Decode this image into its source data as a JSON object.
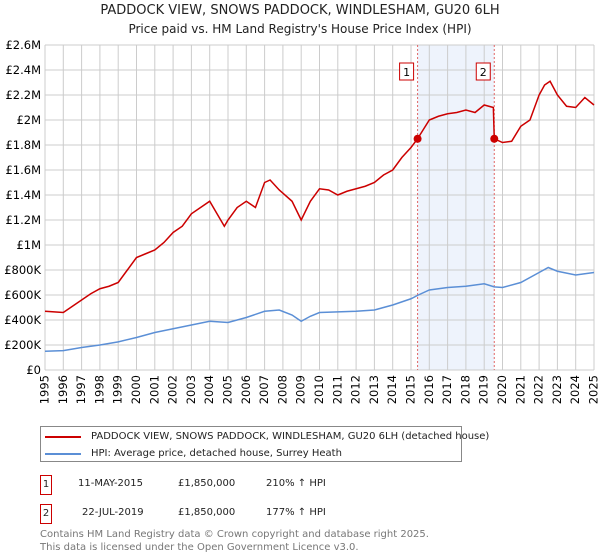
{
  "chart_data": {
    "type": "line",
    "title": "PADDOCK VIEW, SNOWS PADDOCK, WINDLESHAM, GU20 6LH",
    "subtitle": "Price paid vs. HM Land Registry's House Price Index (HPI)",
    "xlim": [
      1995,
      2025
    ],
    "ylim": [
      0,
      2600000
    ],
    "grid": true,
    "yticks": [
      {
        "v": 0,
        "l": "£0"
      },
      {
        "v": 200000,
        "l": "£200K"
      },
      {
        "v": 400000,
        "l": "£400K"
      },
      {
        "v": 600000,
        "l": "£600K"
      },
      {
        "v": 800000,
        "l": "£800K"
      },
      {
        "v": 1000000,
        "l": "£1M"
      },
      {
        "v": 1200000,
        "l": "£1.2M"
      },
      {
        "v": 1400000,
        "l": "£1.4M"
      },
      {
        "v": 1600000,
        "l": "£1.6M"
      },
      {
        "v": 1800000,
        "l": "£1.8M"
      },
      {
        "v": 2000000,
        "l": "£2M"
      },
      {
        "v": 2200000,
        "l": "£2.2M"
      },
      {
        "v": 2400000,
        "l": "£2.4M"
      },
      {
        "v": 2600000,
        "l": "£2.6M"
      }
    ],
    "xticks": [
      1995,
      1996,
      1997,
      1998,
      1999,
      2000,
      2001,
      2002,
      2003,
      2004,
      2005,
      2006,
      2007,
      2008,
      2009,
      2010,
      2011,
      2012,
      2013,
      2014,
      2015,
      2016,
      2017,
      2018,
      2019,
      2020,
      2021,
      2022,
      2023,
      2024,
      2025
    ],
    "shade": [
      2015.36,
      2019.55
    ],
    "series": [
      {
        "name": "PADDOCK VIEW, SNOWS PADDOCK, WINDLESHAM, GU20 6LH (detached house)",
        "color": "#cc0000",
        "x": [
          1995,
          1995.5,
          1996,
          1996.5,
          1997,
          1997.5,
          1998,
          1998.5,
          1999,
          1999.5,
          2000,
          2000.5,
          2001,
          2001.5,
          2002,
          2002.5,
          2003,
          2003.5,
          2004,
          2004.4,
          2004.8,
          2005,
          2005.5,
          2006,
          2006.5,
          2007,
          2007.3,
          2007.8,
          2008.5,
          2009,
          2009.5,
          2010,
          2010.5,
          2011,
          2011.5,
          2012,
          2012.5,
          2013,
          2013.5,
          2014,
          2014.5,
          2015,
          2015.36,
          2015.7,
          2016,
          2016.5,
          2017,
          2017.5,
          2018,
          2018.5,
          2019,
          2019.5,
          2019.55,
          2020,
          2020.5,
          2021,
          2021.5,
          2022,
          2022.3,
          2022.6,
          2023,
          2023.5,
          2024,
          2024.5,
          2025
        ],
        "y": [
          470000,
          465000,
          460000,
          510000,
          560000,
          610000,
          650000,
          670000,
          700000,
          800000,
          900000,
          930000,
          960000,
          1020000,
          1100000,
          1150000,
          1250000,
          1300000,
          1350000,
          1250000,
          1150000,
          1200000,
          1300000,
          1350000,
          1300000,
          1500000,
          1520000,
          1440000,
          1350000,
          1200000,
          1350000,
          1450000,
          1440000,
          1400000,
          1430000,
          1450000,
          1470000,
          1500000,
          1560000,
          1600000,
          1700000,
          1780000,
          1850000,
          1930000,
          2000000,
          2030000,
          2050000,
          2060000,
          2080000,
          2060000,
          2120000,
          2100000,
          1850000,
          1820000,
          1830000,
          1950000,
          2000000,
          2200000,
          2280000,
          2310000,
          2200000,
          2110000,
          2100000,
          2180000,
          2120000
        ]
      },
      {
        "name": "HPI: Average price, detached house, Surrey Heath",
        "color": "#5b8fd6",
        "x": [
          1995,
          1996,
          1997,
          1998,
          1999,
          2000,
          2001,
          2002,
          2003,
          2004,
          2005,
          2006,
          2007,
          2007.8,
          2008.5,
          2009,
          2009.5,
          2010,
          2011,
          2012,
          2013,
          2014,
          2015,
          2015.4,
          2016,
          2017,
          2018,
          2019,
          2019.55,
          2020,
          2021,
          2022,
          2022.5,
          2023,
          2024,
          2025
        ],
        "y": [
          150000,
          155000,
          180000,
          200000,
          225000,
          260000,
          300000,
          330000,
          360000,
          390000,
          380000,
          420000,
          470000,
          480000,
          440000,
          390000,
          430000,
          460000,
          465000,
          470000,
          480000,
          520000,
          570000,
          600000,
          640000,
          660000,
          670000,
          690000,
          665000,
          660000,
          700000,
          780000,
          820000,
          790000,
          760000,
          780000
        ]
      }
    ],
    "markers": [
      {
        "label": "1",
        "x": 2015.36,
        "y": 1850000
      },
      {
        "label": "2",
        "x": 2019.55,
        "y": 1850000
      }
    ]
  },
  "legend": {
    "items": [
      "PADDOCK VIEW, SNOWS PADDOCK, WINDLESHAM, GU20 6LH (detached house)",
      "HPI: Average price, detached house, Surrey Heath"
    ]
  },
  "transactions": [
    {
      "num": "1",
      "date": "11-MAY-2015",
      "price": "£1,850,000",
      "hpi": "210% ↑ HPI"
    },
    {
      "num": "2",
      "date": "22-JUL-2019",
      "price": "£1,850,000",
      "hpi": "177% ↑ HPI"
    }
  ],
  "footer": {
    "line1": "Contains HM Land Registry data © Crown copyright and database right 2025.",
    "line2": "This data is licensed under the Open Government Licence v3.0."
  }
}
